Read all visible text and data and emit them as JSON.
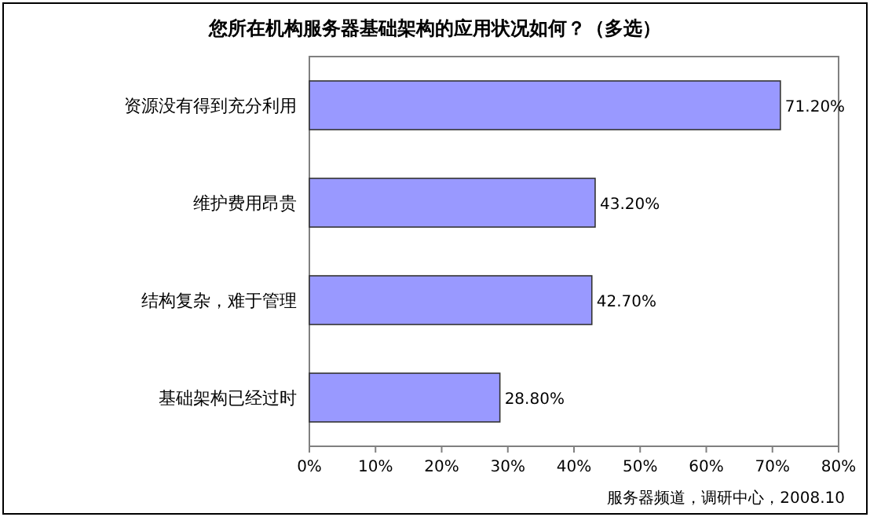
{
  "chart_data": {
    "type": "bar",
    "orientation": "horizontal",
    "title": "您所在机构服务器基础架构的应用状况如何？（多选）",
    "categories": [
      "资源没有得到充分利用",
      "维护费用昂贵",
      "结构复杂，难于管理",
      "基础架构已经过时"
    ],
    "values": [
      71.2,
      43.2,
      42.7,
      28.8
    ],
    "value_labels": [
      "71.20%",
      "43.20%",
      "42.70%",
      "28.80%"
    ],
    "color": "#9999ff",
    "xlim": [
      0,
      80
    ],
    "xticks": [
      {
        "value": 0,
        "label": "0%"
      },
      {
        "value": 10,
        "label": "10%"
      },
      {
        "value": 20,
        "label": "20%"
      },
      {
        "value": 30,
        "label": "30%"
      },
      {
        "value": 40,
        "label": "40%"
      },
      {
        "value": 50,
        "label": "50%"
      },
      {
        "value": 60,
        "label": "60%"
      },
      {
        "value": 70,
        "label": "70%"
      },
      {
        "value": 80,
        "label": "80%"
      }
    ],
    "grid": false,
    "annotations": [
      "服务器频道，调研中心，2008.10"
    ]
  }
}
